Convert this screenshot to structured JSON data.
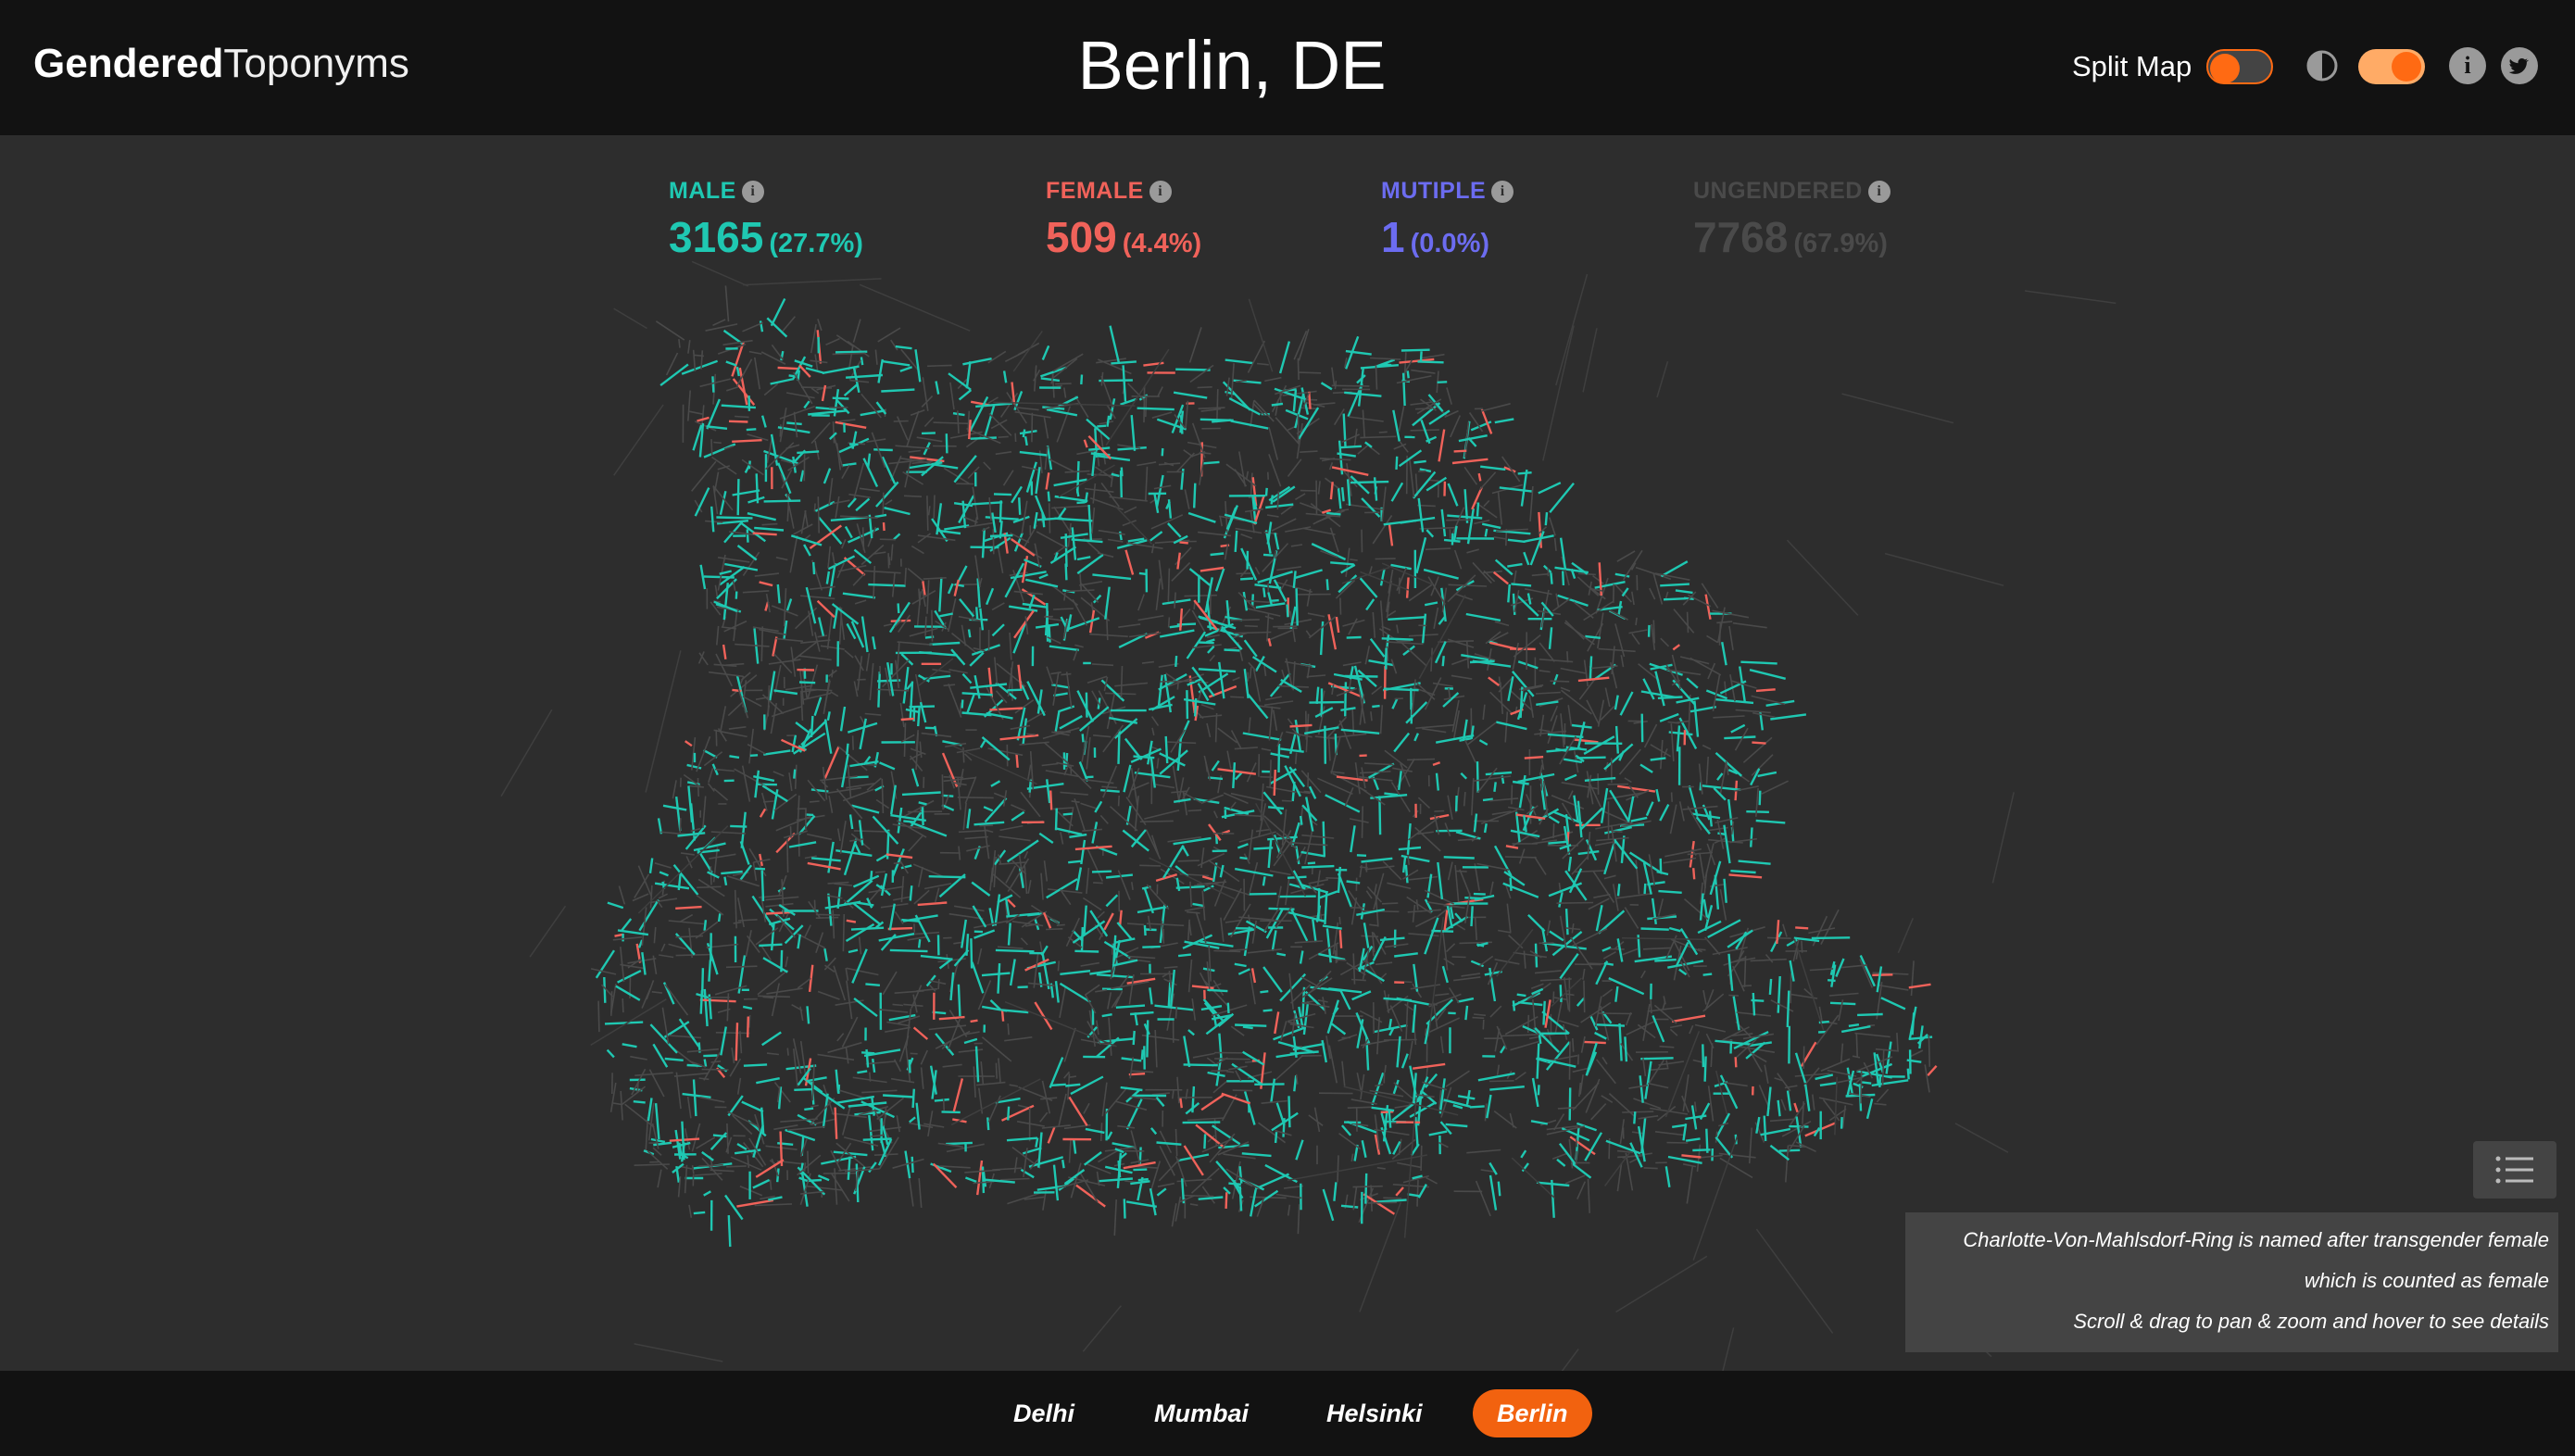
{
  "app": {
    "logo_bold": "Gendered",
    "logo_light": "Toponyms"
  },
  "header": {
    "city_title": "Berlin, DE",
    "split_map_label": "Split Map",
    "split_map_on": false,
    "dark_theme_on": true,
    "info_icon": "info-icon",
    "twitter_icon": "twitter-icon",
    "contrast_icon": "contrast-icon"
  },
  "stats": [
    {
      "label": "MALE",
      "count": "3165",
      "percent": "(27.7%)",
      "color": "#1fc8b2"
    },
    {
      "label": "FEMALE",
      "count": "509",
      "percent": "(4.4%)",
      "color": "#f0625a"
    },
    {
      "label": "MUTIPLE",
      "count": "1",
      "percent": "(0.0%)",
      "color": "#6c6cf0"
    },
    {
      "label": "UNGENDERED",
      "count": "7768",
      "percent": "(67.9%)",
      "color": "#4a4a4a"
    }
  ],
  "map": {
    "street_colors": {
      "male": "#1fc8b2",
      "female": "#f0625a",
      "ungendered": "#4a4a4a"
    }
  },
  "infobox": {
    "line1": "Charlotte-Von-Mahlsdorf-Ring is named after transgender female",
    "line2": "which is counted as female",
    "line3": "Scroll & drag to pan & zoom and hover to see details"
  },
  "legend_button_icon": "list-icon",
  "cities": [
    "Delhi",
    "Mumbai",
    "Helsinki",
    "Berlin"
  ],
  "active_city": "Berlin",
  "colors": {
    "accent": "#f2620f",
    "header_bg": "#121212",
    "map_bg": "#2d2d2d"
  }
}
